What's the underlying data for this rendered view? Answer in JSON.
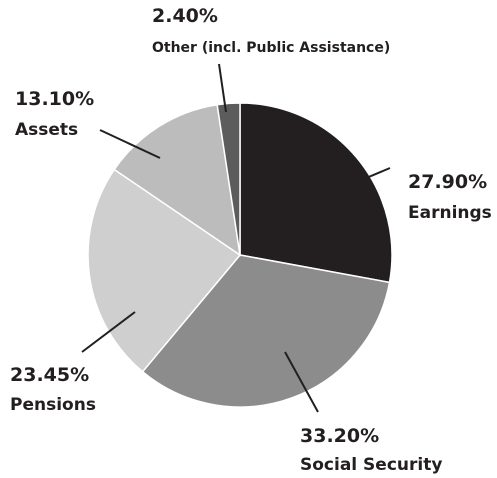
{
  "chart_data": {
    "type": "pie",
    "categories": [
      "Earnings",
      "Social Security",
      "Pensions",
      "Assets",
      "Other (incl. Public Assistance)"
    ],
    "values": [
      27.9,
      33.2,
      23.45,
      13.1,
      2.4
    ],
    "value_labels": [
      "27.90%",
      "33.20%",
      "23.45%",
      "13.10%",
      "2.40%"
    ],
    "colors": [
      "#231f20",
      "#8c8c8c",
      "#cfcfcf",
      "#bcbcbc",
      "#5c5c5c"
    ]
  }
}
